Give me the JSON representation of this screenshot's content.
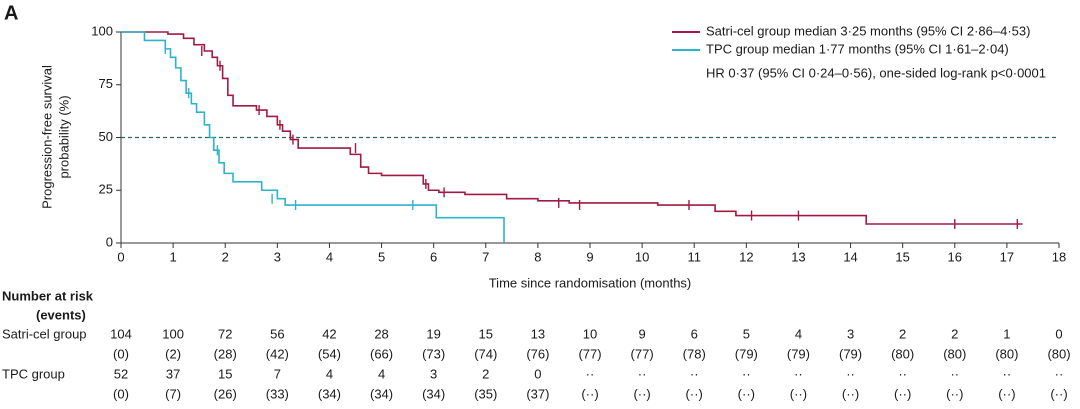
{
  "chart_data": {
    "type": "step",
    "panel_label": "A",
    "ylabel": [
      "Progression-free survival",
      "probability (%)"
    ],
    "xlabel": "Time since randomisation (months)",
    "xlim": [
      0,
      18
    ],
    "ylim": [
      0,
      100
    ],
    "xticks": [
      0,
      1,
      2,
      3,
      4,
      5,
      6,
      7,
      8,
      9,
      10,
      11,
      12,
      13,
      14,
      15,
      16,
      17,
      18
    ],
    "yticks": [
      0,
      25,
      50,
      75,
      100
    ],
    "reference_line": 50,
    "legend": "upper right",
    "annotation": "HR 0·37 (95% CI 0·24–0·56), one-sided log-rank p<0·0001",
    "series": [
      {
        "name": "Satri-cel group median 3·25 months (95% CI 2·86–4·53)",
        "color": "#a11a43",
        "x": [
          0,
          0.9,
          1.2,
          1.4,
          1.6,
          1.75,
          1.85,
          1.95,
          2.05,
          2.15,
          2.6,
          2.8,
          3.0,
          3.1,
          3.25,
          3.4,
          4.4,
          4.6,
          4.75,
          5.0,
          5.8,
          5.9,
          6.1,
          6.6,
          7.4,
          8.0,
          8.6,
          10.3,
          11.4,
          11.8,
          14.3,
          17.3
        ],
        "values": [
          100,
          99,
          97,
          94,
          91,
          88,
          84,
          78,
          70,
          65,
          63,
          60,
          56,
          53,
          49,
          45,
          42,
          36,
          33,
          32,
          28,
          25,
          24,
          23,
          21,
          20,
          19,
          18,
          15,
          13,
          9,
          9
        ],
        "censor_x": [
          1.55,
          1.9,
          2.65,
          3.05,
          3.3,
          4.5,
          5.85,
          6.2,
          8.4,
          8.8,
          10.9,
          12.1,
          13.0,
          16.0,
          17.2
        ],
        "censor_y": [
          91,
          84,
          63,
          56,
          49,
          45,
          28,
          24,
          19,
          18,
          18,
          13,
          13,
          9,
          9
        ]
      },
      {
        "name": "TPC group median 1·77 months (95% CI 1·61–2·04)",
        "color": "#2db3cc",
        "x": [
          0,
          0.45,
          0.85,
          0.95,
          1.05,
          1.15,
          1.25,
          1.35,
          1.45,
          1.6,
          1.7,
          1.78,
          1.88,
          1.98,
          2.15,
          2.7,
          3.0,
          3.15,
          6.05,
          7.35
        ],
        "values": [
          100,
          96,
          92,
          88,
          83,
          77,
          71,
          66,
          62,
          56,
          50,
          44,
          38,
          33,
          29,
          25,
          21,
          18,
          12,
          0
        ],
        "censor_x": [
          0.85,
          1.3,
          1.85,
          2.9,
          3.35,
          5.6
        ],
        "censor_y": [
          92,
          71,
          44,
          21,
          18,
          18
        ]
      }
    ],
    "risk_table": {
      "title": "Number at risk",
      "subtitle": "(events)",
      "rows": [
        {
          "label": "Satri-cel group",
          "at_risk": [
            "104",
            "100",
            "72",
            "56",
            "42",
            "28",
            "19",
            "15",
            "13",
            "10",
            "9",
            "6",
            "5",
            "4",
            "3",
            "2",
            "2",
            "1",
            "0"
          ],
          "events": [
            "(0)",
            "(2)",
            "(28)",
            "(42)",
            "(54)",
            "(66)",
            "(73)",
            "(74)",
            "(76)",
            "(77)",
            "(77)",
            "(78)",
            "(79)",
            "(79)",
            "(79)",
            "(80)",
            "(80)",
            "(80)",
            "(80)"
          ]
        },
        {
          "label": "TPC group",
          "at_risk": [
            "52",
            "37",
            "15",
            "7",
            "4",
            "4",
            "3",
            "2",
            "0",
            "··",
            "··",
            "··",
            "··",
            "··",
            "··",
            "··",
            "··",
            "··",
            "··"
          ],
          "events": [
            "(0)",
            "(7)",
            "(26)",
            "(33)",
            "(34)",
            "(34)",
            "(34)",
            "(35)",
            "(37)",
            "(··)",
            "(··)",
            "(··)",
            "(··)",
            "(··)",
            "(··)",
            "(··)",
            "(··)",
            "(··)",
            "(··)"
          ]
        }
      ]
    }
  }
}
